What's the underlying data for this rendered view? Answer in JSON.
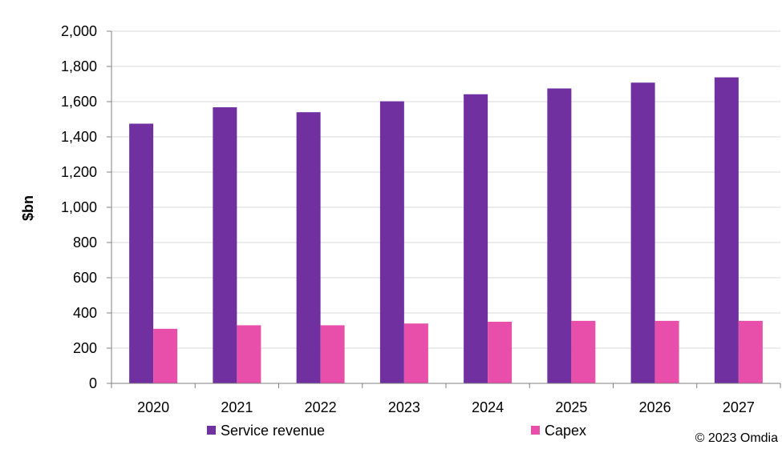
{
  "chart_data": {
    "type": "bar",
    "title": "",
    "xlabel": "",
    "ylabel": "$bn",
    "ylim": [
      0,
      2000
    ],
    "y_ticks": [
      "0",
      "200",
      "400",
      "600",
      "800",
      "1,000",
      "1,200",
      "1,400",
      "1,600",
      "1,800",
      "2,000"
    ],
    "grid": true,
    "legend_position": "bottom",
    "categories": [
      "2020",
      "2021",
      "2022",
      "2023",
      "2024",
      "2025",
      "2026",
      "2027"
    ],
    "series": [
      {
        "name": "Service revenue",
        "color": "#7030A0",
        "values": [
          1475,
          1568,
          1540,
          1602,
          1642,
          1675,
          1708,
          1738
        ]
      },
      {
        "name": "Capex",
        "color": "#E84FAA",
        "values": [
          310,
          330,
          330,
          340,
          350,
          355,
          355,
          355
        ]
      }
    ]
  },
  "copyright": "© 2023 Omdia"
}
